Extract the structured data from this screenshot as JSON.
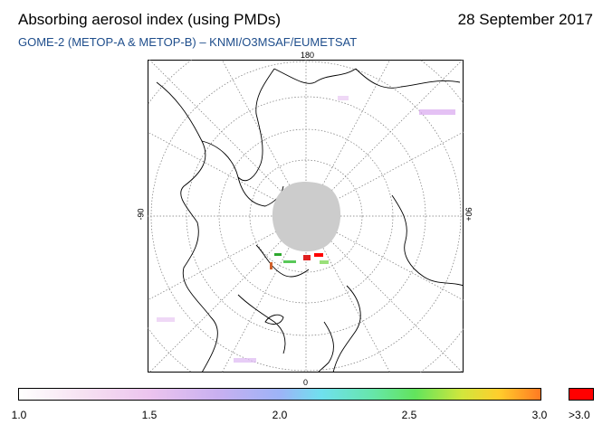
{
  "header": {
    "title": "Absorbing aerosol index (using PMDs)",
    "date": "28 September 2017",
    "subtitle": "GOME-2 (METOP-A & METOP-B)  –  KNMI/O3MSAF/EUMETSAT"
  },
  "map": {
    "projection": "north polar stereographic",
    "longitude_labels": {
      "top": "180",
      "bottom": "0",
      "left": "-90",
      "right": "90+"
    },
    "no_data_color": "#cccccc"
  },
  "colorbar": {
    "tick_labels": [
      "1.0",
      "1.5",
      "2.0",
      "2.5",
      "3.0"
    ],
    "over_label": ">3.0",
    "over_color": "#ff0000"
  }
}
